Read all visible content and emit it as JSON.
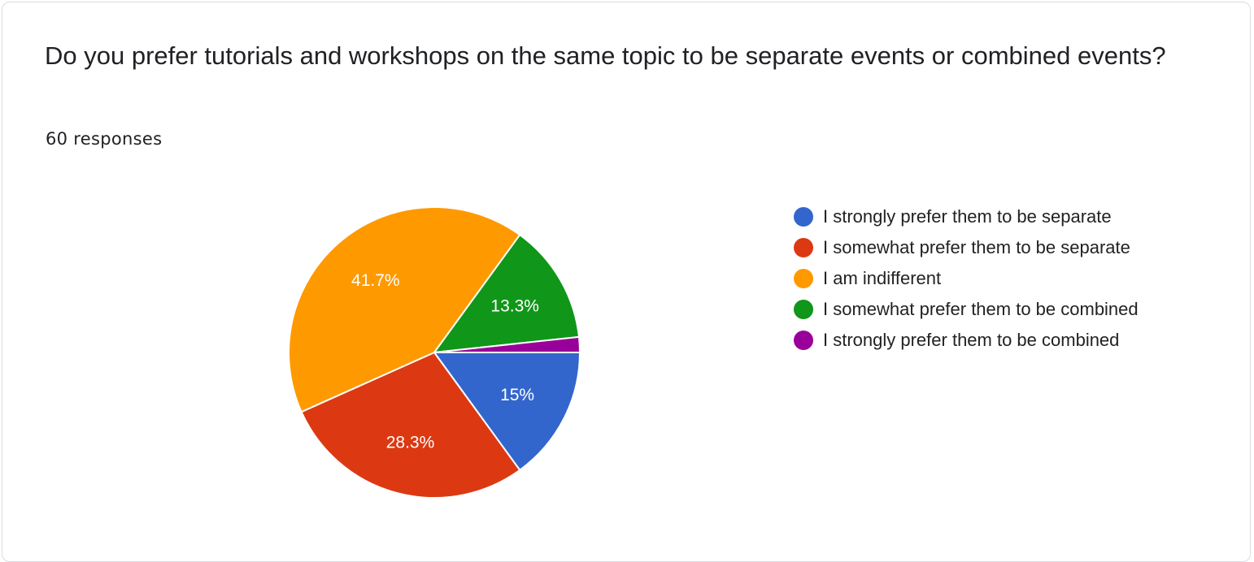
{
  "card": {
    "question": "Do you prefer tutorials and workshops on the same topic to be separate events or combined events?",
    "responses": "60 responses"
  },
  "chart_data": {
    "type": "pie",
    "title": "",
    "legend_position": "right",
    "slice_labels_shown": [
      "15%",
      "28.3%",
      "41.7%",
      "13.3%",
      ""
    ],
    "series": [
      {
        "name": "I strongly prefer them to be separate",
        "value": 15,
        "color": "#3366cc"
      },
      {
        "name": "I somewhat prefer them to be separate",
        "value": 28.3,
        "color": "#dc3912"
      },
      {
        "name": "I am indifferent",
        "value": 41.7,
        "color": "#ff9900"
      },
      {
        "name": "I somewhat prefer them to be combined",
        "value": 13.3,
        "color": "#109618"
      },
      {
        "name": "I strongly prefer them to be combined",
        "value": 1.7,
        "color": "#990099"
      }
    ]
  }
}
